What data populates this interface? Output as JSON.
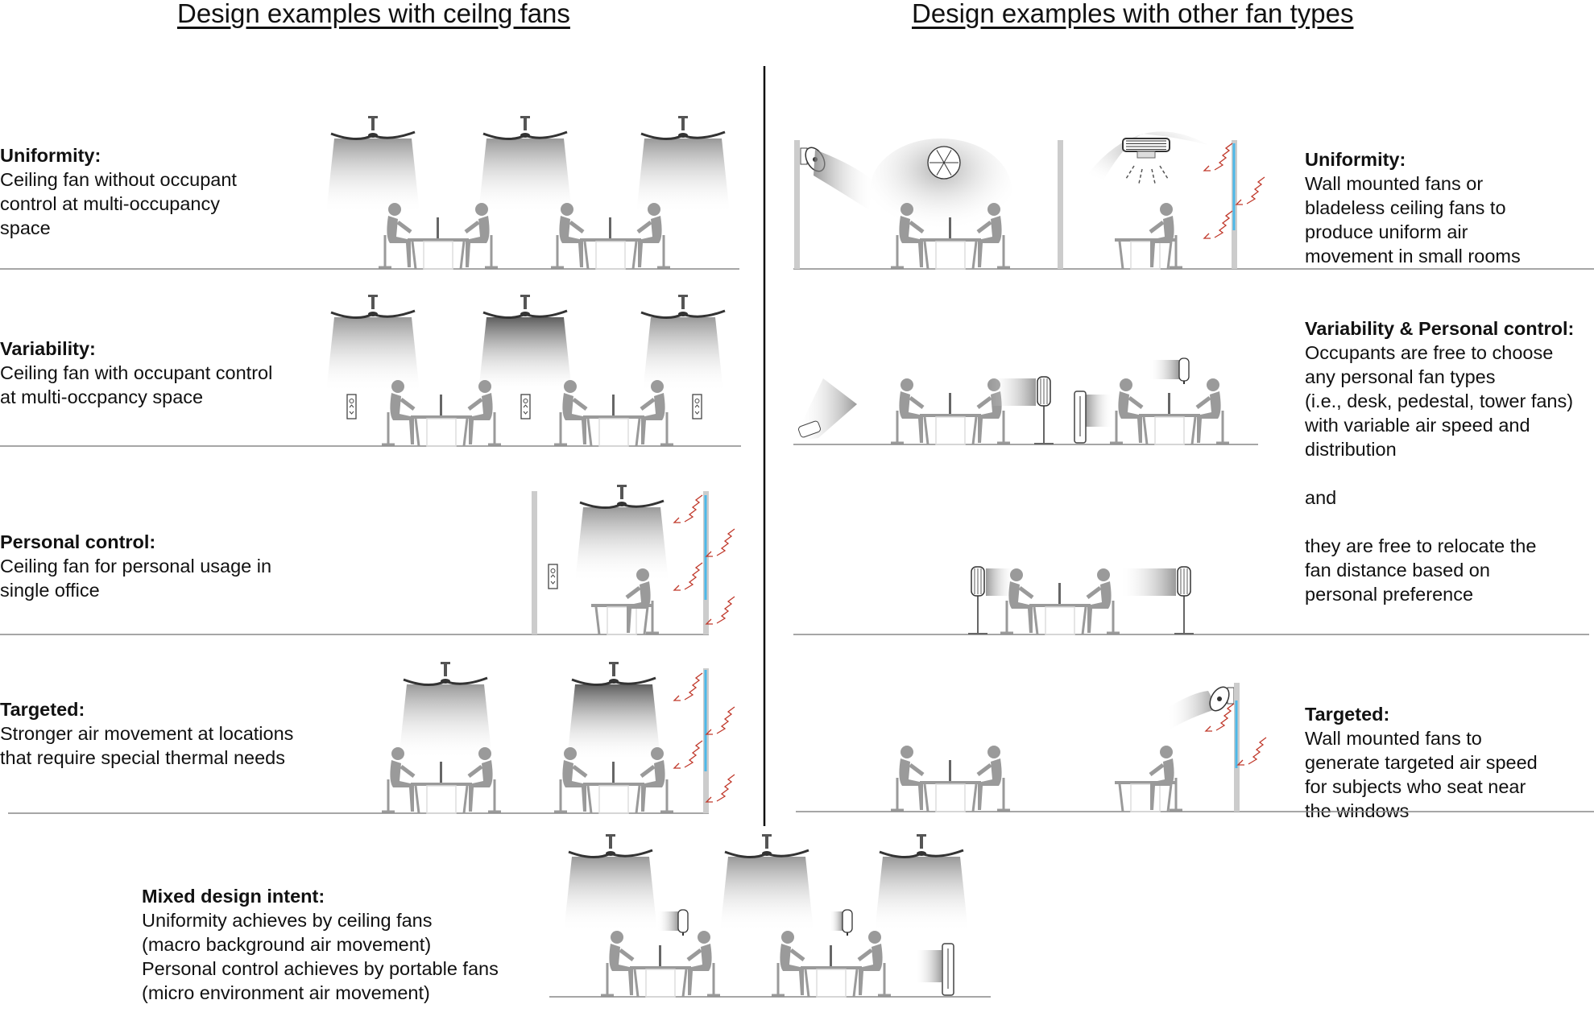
{
  "headers": {
    "left": "Design examples with ceilng fans",
    "right": "Design examples with other fan types"
  },
  "left": {
    "uniformity": {
      "title": "Uniformity:",
      "body": "Ceiling fan without occupant\ncontrol at multi-occupancy\nspace"
    },
    "variability": {
      "title": "Variability:",
      "body": "Ceiling fan with occupant control\nat multi-occpancy space"
    },
    "personal": {
      "title": "Personal control:",
      "body": "Ceiling fan for personal usage in\nsingle office"
    },
    "targeted": {
      "title": "Targeted:",
      "body": "Stronger air movement at locations\nthat require special thermal needs"
    }
  },
  "right": {
    "uniformity": {
      "title": "Uniformity:",
      "body": "Wall mounted fans or\nbladeless ceiling fans to\nproduce uniform air\nmovement in small rooms"
    },
    "variability": {
      "title": "Variability & Personal control:",
      "body": "Occupants are free to choose\nany personal fan types\n(i.e., desk, pedestal, tower fans)\nwith variable air speed and\ndistribution\n\nand\n\nthey are free to relocate the\nfan distance based on\npersonal preference"
    },
    "targeted": {
      "title": "Targeted:",
      "body": "Wall mounted fans to\ngenerate targeted air speed\nfor subjects who seat near\nthe windows"
    }
  },
  "mixed": {
    "title": "Mixed design intent:",
    "body": "Uniformity achieves by ceiling fans\n(macro background air movement)\nPersonal control achieves by portable fans\n(micro environment air movement)"
  },
  "colors": {
    "window": "#4db8e8",
    "heat": "#c0392b",
    "figure": "#9a9a9a",
    "line": "#888888"
  }
}
